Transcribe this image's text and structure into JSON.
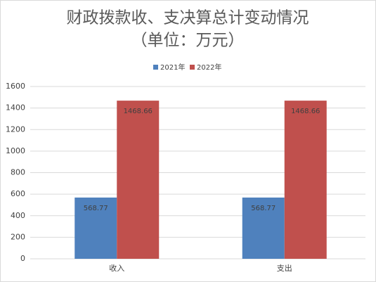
{
  "chart_data": {
    "type": "bar",
    "title": "财政拨款收、支决算总计变动情况",
    "subtitle": "（单位：万元）",
    "categories": [
      "收入",
      "支出"
    ],
    "series": [
      {
        "name": "2021年",
        "color": "#4f81bd",
        "values": [
          568.77,
          568.77
        ]
      },
      {
        "name": "2022年",
        "color": "#c0504d",
        "values": [
          1468.66,
          1468.66
        ]
      }
    ],
    "ylim": [
      0,
      1600
    ],
    "yticks": [
      0,
      200,
      400,
      600,
      800,
      1000,
      1200,
      1400,
      1600
    ],
    "grid": true,
    "legend": "top"
  }
}
